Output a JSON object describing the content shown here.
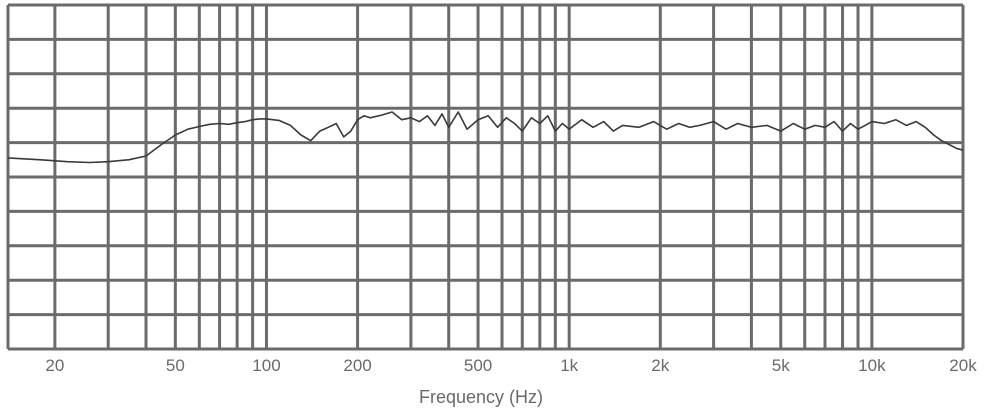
{
  "chart_data": {
    "type": "line",
    "title": "",
    "xlabel": "Frequency (Hz)",
    "ylabel": "",
    "x_scale": "log",
    "xlim": [
      14,
      20000
    ],
    "ylim": [
      -5,
      4
    ],
    "y_gridlines": 10,
    "grid": true,
    "legend": "none",
    "x_ticks": [
      {
        "value": 20,
        "label": "20"
      },
      {
        "value": 50,
        "label": "50"
      },
      {
        "value": 100,
        "label": "100"
      },
      {
        "value": 200,
        "label": "200"
      },
      {
        "value": 500,
        "label": "500"
      },
      {
        "value": 1000,
        "label": "1k"
      },
      {
        "value": 2000,
        "label": "2k"
      },
      {
        "value": 5000,
        "label": "5k"
      },
      {
        "value": 10000,
        "label": "10k"
      },
      {
        "value": 20000,
        "label": "20k"
      }
    ],
    "x_minor_gridlines": [
      30,
      40,
      60,
      70,
      80,
      90,
      300,
      400,
      600,
      700,
      800,
      900,
      3000,
      4000,
      6000,
      7000,
      8000,
      9000
    ],
    "series": [
      {
        "color": "#3a3a3a",
        "x": [
          14,
          18,
          22,
          26,
          30,
          35,
          40,
          45,
          50,
          55,
          60,
          65,
          70,
          75,
          80,
          85,
          90,
          95,
          100,
          110,
          120,
          130,
          140,
          150,
          160,
          170,
          180,
          190,
          200,
          210,
          220,
          240,
          260,
          280,
          300,
          320,
          340,
          360,
          380,
          400,
          430,
          460,
          500,
          540,
          580,
          620,
          660,
          700,
          750,
          800,
          850,
          900,
          950,
          1000,
          1100,
          1200,
          1300,
          1400,
          1500,
          1700,
          1900,
          2100,
          2300,
          2500,
          2700,
          3000,
          3300,
          3600,
          4000,
          4500,
          5000,
          5500,
          6000,
          6500,
          7000,
          7500,
          8000,
          8500,
          9000,
          9500,
          10000,
          11000,
          12000,
          13000,
          14000,
          15000,
          16000,
          17000,
          18000,
          19000,
          20000
        ],
        "y": [
          0,
          -0.05,
          -0.1,
          -0.12,
          -0.1,
          -0.05,
          0.05,
          0.35,
          0.6,
          0.75,
          0.82,
          0.88,
          0.9,
          0.88,
          0.92,
          0.95,
          1.0,
          1.02,
          1.02,
          0.98,
          0.85,
          0.6,
          0.45,
          0.7,
          0.8,
          0.9,
          0.55,
          0.7,
          1.0,
          1.1,
          1.05,
          1.12,
          1.2,
          1.0,
          1.05,
          0.95,
          1.1,
          0.85,
          1.15,
          0.8,
          1.2,
          0.75,
          1.0,
          1.1,
          0.8,
          1.05,
          0.9,
          0.7,
          1.05,
          0.9,
          1.1,
          0.7,
          0.9,
          0.75,
          1.0,
          0.8,
          0.95,
          0.7,
          0.85,
          0.8,
          0.95,
          0.75,
          0.9,
          0.8,
          0.85,
          0.95,
          0.75,
          0.9,
          0.8,
          0.85,
          0.7,
          0.9,
          0.75,
          0.85,
          0.8,
          0.95,
          0.7,
          0.9,
          0.75,
          0.85,
          0.95,
          0.9,
          1.0,
          0.85,
          0.95,
          0.8,
          0.6,
          0.45,
          0.35,
          0.25,
          0.2
        ]
      }
    ]
  }
}
